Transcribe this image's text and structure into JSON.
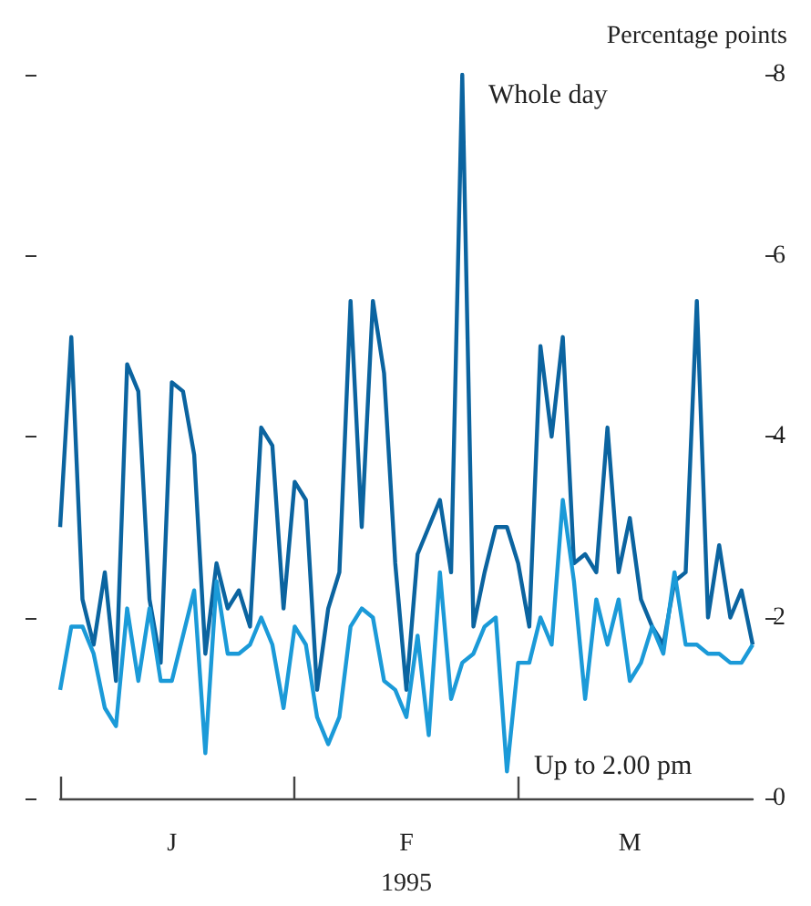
{
  "chart_data": {
    "type": "line",
    "ylabel": "Percentage points",
    "xlabel": "1995",
    "categories": [
      null,
      null,
      null,
      null,
      null,
      null,
      null,
      null,
      null,
      null,
      "J",
      null,
      null,
      null,
      null,
      null,
      null,
      null,
      null,
      null,
      null,
      null,
      null,
      null,
      null,
      null,
      null,
      null,
      null,
      null,
      null,
      "F",
      null,
      null,
      null,
      null,
      null,
      null,
      null,
      null,
      null,
      null,
      null,
      null,
      null,
      null,
      null,
      null,
      null,
      null,
      null,
      "M",
      null,
      null,
      null,
      null,
      null,
      null,
      null,
      null,
      null,
      null,
      null
    ],
    "ylim": [
      0,
      8
    ],
    "yticks": [
      0,
      2,
      4,
      6,
      8
    ],
    "grid": false,
    "legend": false,
    "marker": "none",
    "line_style": "solid",
    "series": [
      {
        "name": "Whole day",
        "color": "#0b64a0",
        "values": [
          3.0,
          5.1,
          2.2,
          1.7,
          2.5,
          1.3,
          4.8,
          4.5,
          2.2,
          1.5,
          4.6,
          4.5,
          3.8,
          1.6,
          2.6,
          2.1,
          2.3,
          1.9,
          4.1,
          3.9,
          2.1,
          3.5,
          3.3,
          1.2,
          2.1,
          2.5,
          5.5,
          3.0,
          5.5,
          4.7,
          2.6,
          1.2,
          2.7,
          3.0,
          3.3,
          2.5,
          8.0,
          1.9,
          2.5,
          3.0,
          3.0,
          2.6,
          1.9,
          5.0,
          4.0,
          5.1,
          2.6,
          2.7,
          2.5,
          4.1,
          2.5,
          3.1,
          2.2,
          1.9,
          1.7,
          2.4,
          2.5,
          5.5,
          2.0,
          2.8,
          2.0,
          2.3,
          1.7
        ]
      },
      {
        "name": "Up to 2.00 pm",
        "color": "#1b9ad8",
        "values": [
          1.2,
          1.9,
          1.9,
          1.6,
          1.0,
          0.8,
          2.1,
          1.3,
          2.1,
          1.3,
          1.3,
          1.8,
          2.3,
          0.5,
          2.4,
          1.6,
          1.6,
          1.7,
          2.0,
          1.7,
          1.0,
          1.9,
          1.7,
          0.9,
          0.6,
          0.9,
          1.9,
          2.1,
          2.0,
          1.3,
          1.2,
          0.9,
          1.8,
          0.7,
          2.5,
          1.1,
          1.5,
          1.6,
          1.9,
          2.0,
          0.3,
          1.5,
          1.5,
          2.0,
          1.7,
          3.3,
          2.4,
          1.1,
          2.2,
          1.7,
          2.2,
          1.3,
          1.5,
          1.9,
          1.6,
          2.5,
          1.7,
          1.7,
          1.6,
          1.6,
          1.5,
          1.5,
          1.7
        ]
      }
    ]
  }
}
